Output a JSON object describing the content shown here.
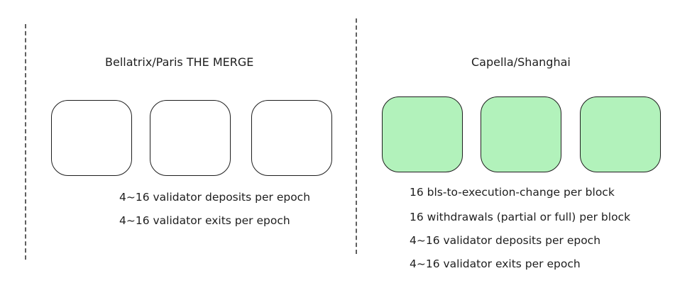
{
  "sections": [
    {
      "title": "Bellatrix/Paris THE MERGE",
      "box_fill": "#ffffff",
      "lines": [
        "4~16 validator deposits per epoch",
        "4~16 validator exits per epoch"
      ]
    },
    {
      "title": "Capella/Shanghai",
      "box_fill": "#b2f2bb",
      "lines": [
        "16 bls-to-execution-change per block",
        "16 withdrawals (partial or full) per block",
        "4~16 validator deposits per epoch",
        "4~16 validator exits per epoch"
      ]
    }
  ],
  "colors": {
    "stroke": "#1e1e1e",
    "divider": "#5f5f5f",
    "green_fill": "#b2f2bb"
  }
}
